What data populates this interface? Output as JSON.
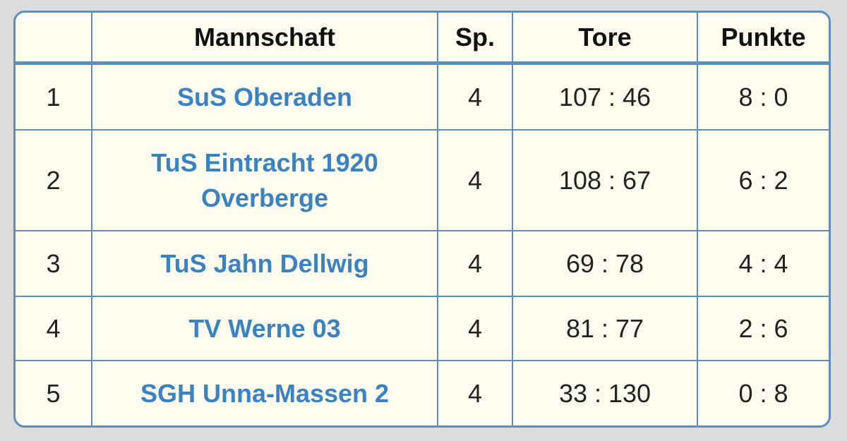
{
  "table": {
    "headers": {
      "rank": "",
      "team": "Mannschaft",
      "games": "Sp.",
      "goals": "Tore",
      "points": "Punkte"
    },
    "rows": [
      {
        "rank": "1",
        "team_line1": "SuS Oberaden",
        "team_line2": "",
        "games": "4",
        "goals": "107 : 46",
        "points": "8 : 0"
      },
      {
        "rank": "2",
        "team_line1": "TuS Eintracht 1920",
        "team_line2": "Overberge",
        "games": "4",
        "goals": "108 : 67",
        "points": "6 : 2"
      },
      {
        "rank": "3",
        "team_line1": "TuS Jahn Dellwig",
        "team_line2": "",
        "games": "4",
        "goals": "69 : 78",
        "points": "4 : 4"
      },
      {
        "rank": "4",
        "team_line1": "TV Werne 03",
        "team_line2": "",
        "games": "4",
        "goals": "81 : 77",
        "points": "2 : 6"
      },
      {
        "rank": "5",
        "team_line1": "SGH Unna-Massen 2",
        "team_line2": "",
        "games": "4",
        "goals": "33 : 130",
        "points": "0 : 8"
      }
    ]
  },
  "colors": {
    "border": "#5b8fc2",
    "background": "#fefdf0",
    "team_link": "#3a82c0"
  }
}
